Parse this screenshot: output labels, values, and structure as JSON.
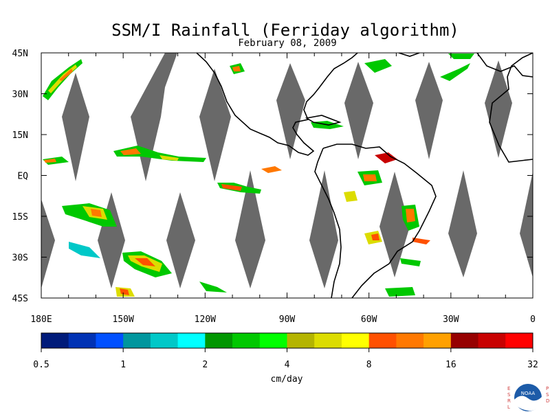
{
  "title": "SSM/I Rainfall (Ferriday algorithm)",
  "date": "February 08, 2009",
  "map": {
    "lon_range": [
      -180,
      0
    ],
    "lat_range": [
      -45,
      45
    ],
    "lat_ticks": [
      {
        "value": 45,
        "label": "45N"
      },
      {
        "value": 30,
        "label": "30N"
      },
      {
        "value": 15,
        "label": "15N"
      },
      {
        "value": 0,
        "label": "EQ"
      },
      {
        "value": -15,
        "label": "15S"
      },
      {
        "value": -30,
        "label": "30S"
      },
      {
        "value": -45,
        "label": "45S"
      }
    ],
    "lon_ticks": [
      {
        "value": -180,
        "label": "180E"
      },
      {
        "value": -150,
        "label": "150W"
      },
      {
        "value": -120,
        "label": "120W"
      },
      {
        "value": -90,
        "label": "90W"
      },
      {
        "value": -60,
        "label": "60W"
      },
      {
        "value": -30,
        "label": "30W"
      },
      {
        "value": 0,
        "label": "0"
      }
    ],
    "swath_gap_color": "#696969",
    "coast_color": "#000000"
  },
  "colorbar": {
    "unit_label": "cm/day",
    "tick_labels": [
      "0.5",
      "1",
      "2",
      "4",
      "8",
      "16",
      "32"
    ],
    "colors": [
      "#001b7a",
      "#0032b4",
      "#0050ff",
      "#00969e",
      "#00c8c8",
      "#00ffff",
      "#009600",
      "#00c800",
      "#00ff00",
      "#b4b400",
      "#dcdc00",
      "#ffff00",
      "#ff5000",
      "#ff7800",
      "#ffa000",
      "#960000",
      "#c80000",
      "#ff0000"
    ]
  },
  "logo": {
    "left_letters": "ESRL",
    "right_letters": "PSD",
    "center_text": "NOAA"
  }
}
